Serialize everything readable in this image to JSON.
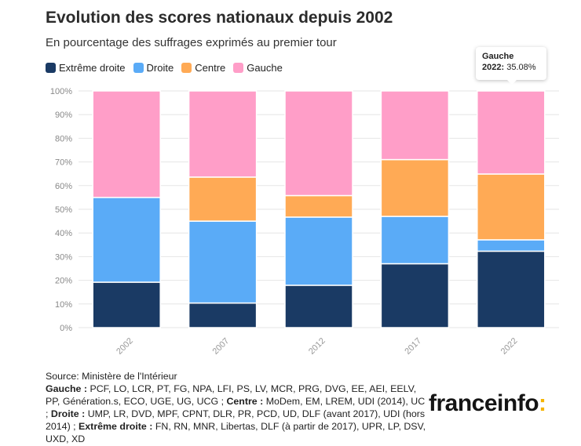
{
  "title": "Evolution des scores nationaux depuis 2002",
  "subtitle": "En pourcentage des suffrages exprimés au premier tour",
  "colors": {
    "extreme_droite": "#1a3a64",
    "droite": "#5aabf7",
    "centre": "#ffaa55",
    "gauche": "#ff9ec8"
  },
  "chart_data": {
    "type": "bar",
    "stacked": true,
    "categories": [
      "2002",
      "2007",
      "2012",
      "2017",
      "2022"
    ],
    "series": [
      {
        "name": "Extrême droite",
        "color": "#1a3a64",
        "values": [
          19.2,
          10.4,
          17.9,
          27.0,
          32.3
        ]
      },
      {
        "name": "Droite",
        "color": "#5aabf7",
        "values": [
          35.8,
          34.6,
          28.8,
          20.0,
          4.8
        ]
      },
      {
        "name": "Centre",
        "color": "#ffaa55",
        "values": [
          0,
          18.6,
          9.1,
          24.0,
          27.8
        ]
      },
      {
        "name": "Gauche",
        "color": "#ff9ec8",
        "values": [
          45.0,
          36.4,
          44.2,
          29.0,
          35.08
        ]
      }
    ],
    "y_ticks": [
      "0%",
      "10%",
      "20%",
      "30%",
      "40%",
      "50%",
      "60%",
      "70%",
      "80%",
      "90%",
      "100%"
    ],
    "ylim": [
      0,
      100
    ],
    "grid": true,
    "legend_position": "top-left"
  },
  "tooltip": {
    "series": "Gauche",
    "year": "2022:",
    "value": "35.08%"
  },
  "source": {
    "line0": "Source: Ministère de l'Intérieur",
    "gauche_label": "Gauche :",
    "gauche_text": " PCF, LO, LCR, PT, FG, NPA, LFI, PS, LV, MCR, PRG, DVG, EE, AEI, EELV, PP, Génération.s, ECO, UGE, UG, UCG ; ",
    "centre_label": "Centre :",
    "centre_text": " MoDem, EM, LREM, UDI (2014), UC ; ",
    "droite_label": "Droite :",
    "droite_text": " UMP, LR, DVD, MPF, CPNT, DLR, PR, PCD, UD, DLF (avant 2017), UDI (hors 2014) ; ",
    "ed_label": "Extrême droite :",
    "ed_text": " FN, RN, MNR, Libertas, DLF (à partir de 2017), UPR, LP, DSV, UXD, XD"
  },
  "logo": {
    "text": "franceinfo",
    "colon": ":"
  }
}
